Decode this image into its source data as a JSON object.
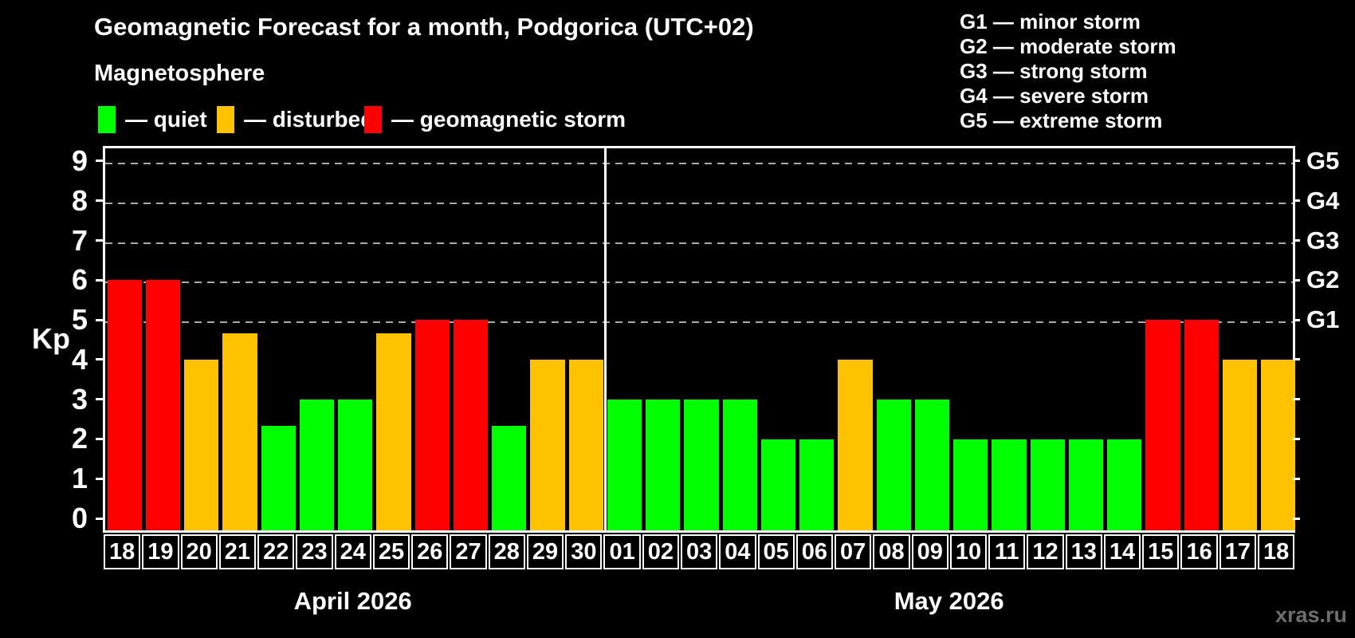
{
  "title": "Geomagnetic Forecast for a month, Podgorica (UTC+02)",
  "subtitle": "Magnetosphere",
  "legend": [
    {
      "status": "quiet",
      "label": "— quiet",
      "color": "#00ff00",
      "x": 123
    },
    {
      "status": "disturbed",
      "label": "— disturbed",
      "color": "#ffc200",
      "x": 272
    },
    {
      "status": "storm",
      "label": "— geomagnetic storm",
      "color": "#ff0000",
      "x": 457
    }
  ],
  "g_scale_legend": [
    "G1 — minor storm",
    "G2 — moderate storm",
    "G3 — strong storm",
    "G4 — severe storm",
    "G5 — extreme storm"
  ],
  "y_axis": {
    "label": "Kp",
    "ticks": [
      0,
      1,
      2,
      3,
      4,
      5,
      6,
      7,
      8,
      9
    ]
  },
  "right_axis": {
    "labels": [
      {
        "text": "G1",
        "kp": 5
      },
      {
        "text": "G2",
        "kp": 6
      },
      {
        "text": "G3",
        "kp": 7
      },
      {
        "text": "G4",
        "kp": 8
      },
      {
        "text": "G5",
        "kp": 9
      }
    ]
  },
  "watermark": "xras.ru",
  "chart_data": {
    "type": "bar",
    "title": "Geomagnetic Forecast for a month, Podgorica (UTC+02)",
    "xlabel": "",
    "ylabel": "Kp",
    "ylim": [
      0,
      9
    ],
    "grid": "dashed horizontal at Kp 5-9 only",
    "gridlines_at": [
      5,
      6,
      7,
      8,
      9
    ],
    "axis_min": -0.36,
    "axis_max": 9.38,
    "colors": {
      "quiet": "#00ff00",
      "disturbed": "#ffc200",
      "storm": "#ff0000"
    },
    "months": [
      {
        "label": "April 2026",
        "days": 13
      },
      {
        "label": "May 2026",
        "days": 18
      }
    ],
    "categories": [
      "18",
      "19",
      "20",
      "21",
      "22",
      "23",
      "24",
      "25",
      "26",
      "27",
      "28",
      "29",
      "30",
      "01",
      "02",
      "03",
      "04",
      "05",
      "06",
      "07",
      "08",
      "09",
      "10",
      "11",
      "12",
      "13",
      "14",
      "15",
      "16",
      "17",
      "18"
    ],
    "values": [
      6,
      6,
      4,
      4.67,
      2.33,
      3,
      3,
      4.67,
      5,
      5,
      2.33,
      4,
      4,
      3,
      3,
      3,
      3,
      2,
      2,
      4,
      3,
      3,
      2,
      2,
      2,
      2,
      2,
      5,
      5,
      4,
      4
    ],
    "statuses": [
      "storm",
      "storm",
      "disturbed",
      "disturbed",
      "quiet",
      "quiet",
      "quiet",
      "disturbed",
      "storm",
      "storm",
      "quiet",
      "disturbed",
      "disturbed",
      "quiet",
      "quiet",
      "quiet",
      "quiet",
      "quiet",
      "quiet",
      "disturbed",
      "quiet",
      "quiet",
      "quiet",
      "quiet",
      "quiet",
      "quiet",
      "quiet",
      "storm",
      "storm",
      "disturbed",
      "disturbed"
    ]
  }
}
